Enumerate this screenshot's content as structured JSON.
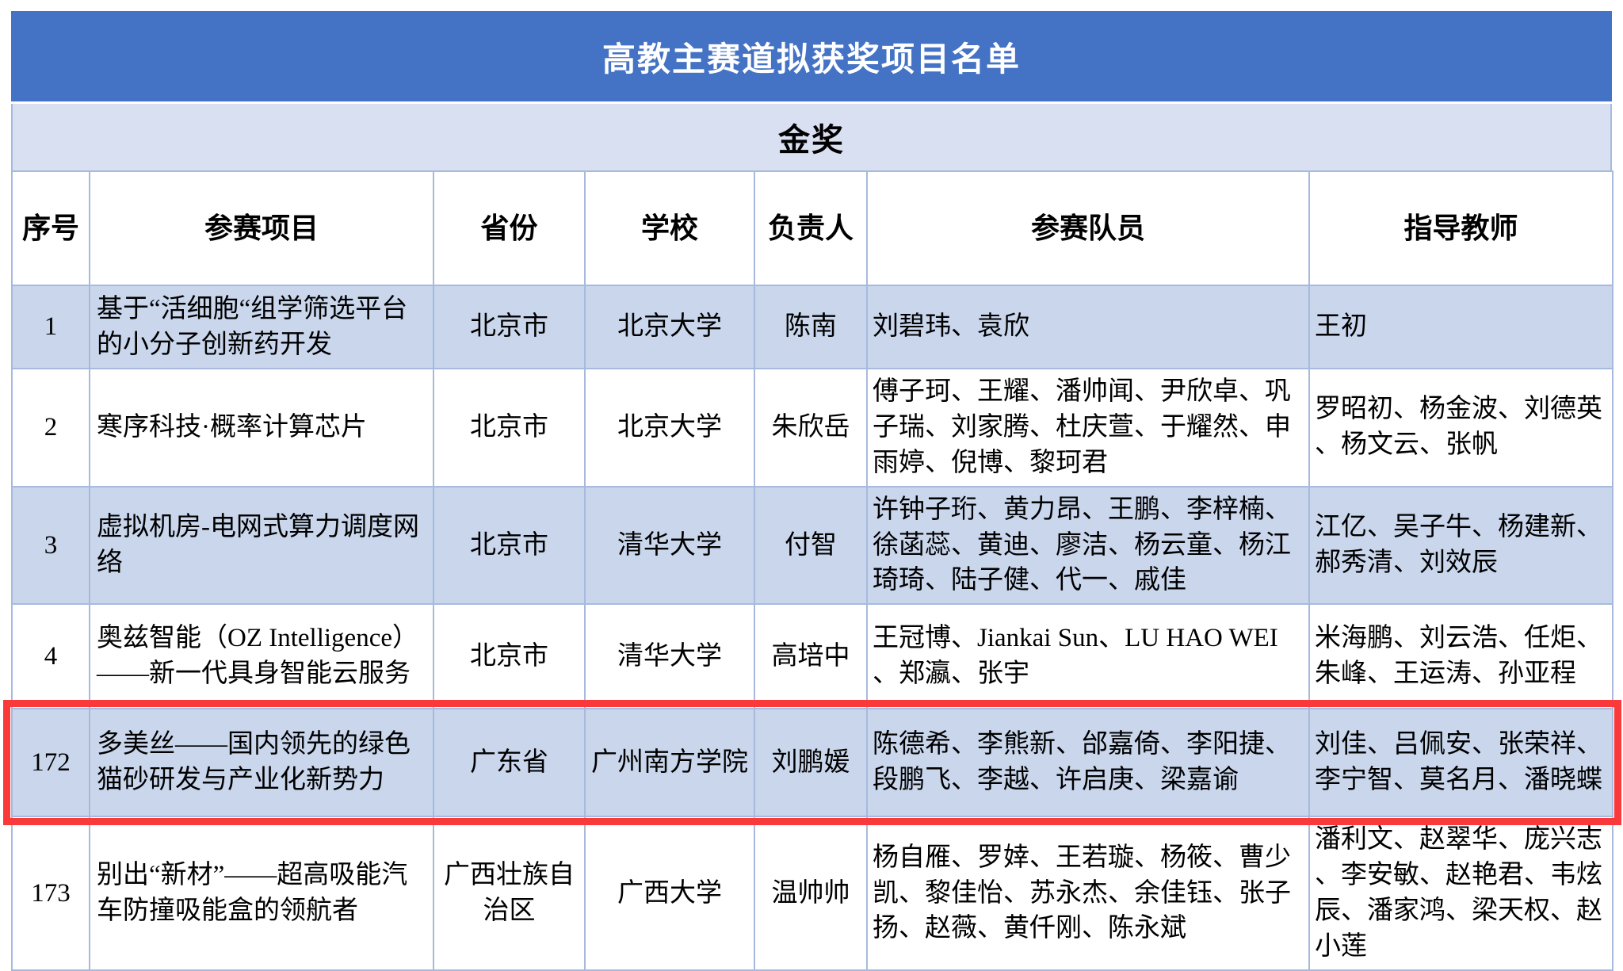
{
  "title": "高教主赛道拟获奖项目名单",
  "award_section": "金奖",
  "columns": [
    "序号",
    "参赛项目",
    "省份",
    "学校",
    "负责人",
    "参赛队员",
    "指导教师"
  ],
  "rows": [
    {
      "no": "1",
      "project": "基于“活细胞“组学筛选平台的小分子创新药开发",
      "province": "北京市",
      "school": "北京大学",
      "leader": "陈南",
      "members": "刘碧玮、袁欣",
      "teachers": "王初",
      "highlighted": false
    },
    {
      "no": "2",
      "project": "寒序科技·概率计算芯片",
      "province": "北京市",
      "school": "北京大学",
      "leader": "朱欣岳",
      "members": "傅子珂、王耀、潘帅闻、尹欣卓、巩子瑞、刘家腾、杜庆萱、于耀然、申雨婷、倪博、黎珂君",
      "teachers": "罗昭初、杨金波、刘德英、杨文云、张帆",
      "highlighted": false
    },
    {
      "no": "3",
      "project": "虚拟机房-电网式算力调度网络",
      "province": "北京市",
      "school": "清华大学",
      "leader": "付智",
      "members": "许钟子珩、黄力昂、王鹏、李梓楠、徐菡蕊、黄迪、廖洁、杨云童、杨江琦琦、陆子健、代一、戚佳",
      "teachers": "江亿、吴子牛、杨建新、郝秀清、刘效辰",
      "highlighted": false
    },
    {
      "no": "4",
      "project": "奥兹智能（OZ Intelligence）——新一代具身智能云服务",
      "province": "北京市",
      "school": "清华大学",
      "leader": "高培中",
      "members": "王冠博、Jiankai Sun、LU HAO WEI、郑瀛、张宇",
      "teachers": "米海鹏、刘云浩、任炬、朱峰、王运涛、孙亚程",
      "highlighted": false
    },
    {
      "no": "172",
      "project": "多美丝——国内领先的绿色猫砂研发与产业化新势力",
      "province": "广东省",
      "school": "广州南方学院",
      "leader": "刘鹏媛",
      "members": "陈德希、李熊新、邰嘉倚、李阳捷、段鹏飞、李越、许启庚、梁嘉谕",
      "teachers": "刘佳、吕佩安、张荣祥、李宁智、莫名月、潘晓蝶",
      "highlighted": true
    },
    {
      "no": "173",
      "project": "别出“新材”——超高吸能汽车防撞吸能盒的领航者",
      "province": "广西壮族自治区",
      "school": "广西大学",
      "leader": "温帅帅",
      "members": "杨自雁、罗婞、王若璇、杨筱、曹少凯、黎佳怡、苏永杰、余佳钰、张子扬、赵薇、黄仟刚、陈永斌",
      "teachers": "潘利文、赵翠华、庞兴志、李安敏、赵艳君、韦炫辰、潘家鸿、梁天权、赵小莲",
      "highlighted": false
    }
  ],
  "colors": {
    "header_blue": "#4472C4",
    "gold_row_bg": "#D9E0F2",
    "band_row_bg": "#C9D6EC",
    "grid_line": "#A7BADD",
    "highlight_red": "#FA3A3A"
  }
}
